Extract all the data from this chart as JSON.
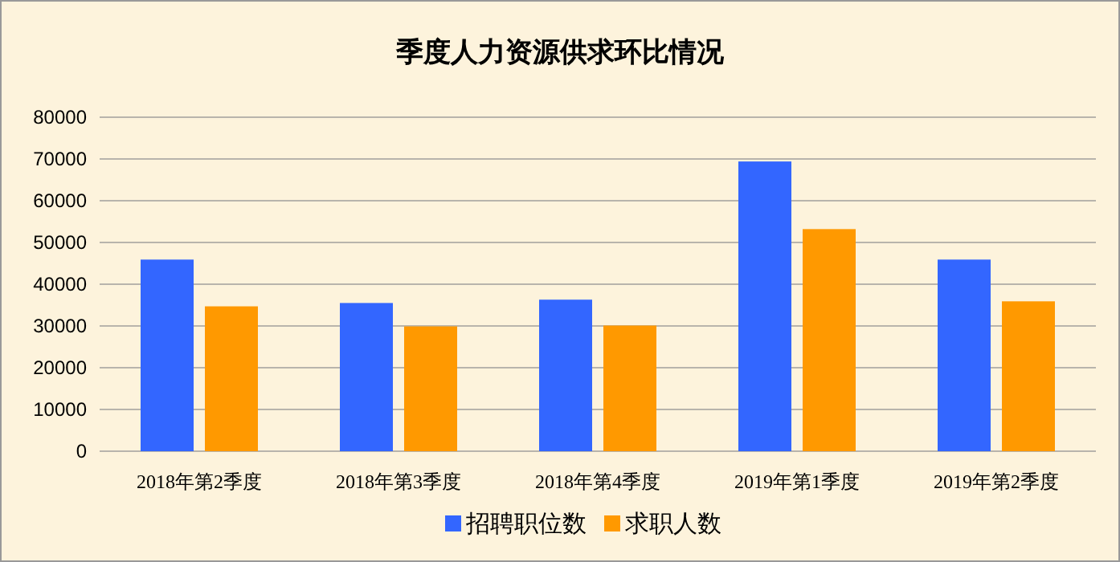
{
  "chart_data": {
    "type": "bar",
    "title": "季度人力资源供求环比情况",
    "categories": [
      "2018年第2季度",
      "2018年第3季度",
      "2018年第4季度",
      "2019年第1季度",
      "2019年第2季度"
    ],
    "series": [
      {
        "name": "招聘职位数",
        "color": "#3366ff",
        "values": [
          45900,
          35500,
          36300,
          69400,
          45900
        ]
      },
      {
        "name": "求职人数",
        "color": "#ff9900",
        "values": [
          34700,
          29900,
          30100,
          53200,
          35900
        ]
      }
    ],
    "ylim": [
      0,
      80000
    ],
    "yticks": [
      0,
      10000,
      20000,
      30000,
      40000,
      50000,
      60000,
      70000,
      80000
    ],
    "grid": "y",
    "legend": "bottom"
  }
}
